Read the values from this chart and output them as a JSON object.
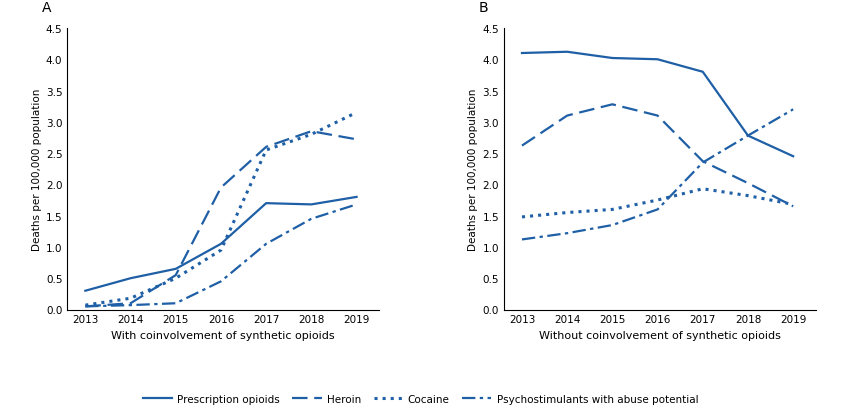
{
  "years": [
    2013,
    2014,
    2015,
    2016,
    2017,
    2018,
    2019
  ],
  "panel_A": {
    "title": "A",
    "xlabel": "With coinvolvement of synthetic opioids",
    "ylabel": "Deaths per 100,000 population",
    "prescription_opioids": [
      0.3,
      0.5,
      0.65,
      1.05,
      1.7,
      1.68,
      1.8
    ],
    "heroin": [
      0.05,
      0.1,
      0.55,
      1.95,
      2.6,
      2.85,
      2.72
    ],
    "cocaine": [
      0.07,
      0.18,
      0.5,
      0.95,
      2.55,
      2.8,
      3.15
    ],
    "psychostimulants": [
      0.05,
      0.07,
      0.1,
      0.45,
      1.05,
      1.45,
      1.68
    ]
  },
  "panel_B": {
    "title": "B",
    "xlabel": "Without coinvolvement of synthetic opioids",
    "ylabel": "Deaths per 100,000 population",
    "prescription_opioids": [
      4.1,
      4.12,
      4.02,
      4.0,
      3.8,
      2.78,
      2.45
    ],
    "heroin": [
      2.62,
      3.1,
      3.28,
      3.1,
      2.37,
      2.02,
      1.65
    ],
    "cocaine": [
      1.48,
      1.55,
      1.6,
      1.75,
      1.93,
      1.82,
      1.68
    ],
    "psychostimulants": [
      1.12,
      1.22,
      1.35,
      1.6,
      2.35,
      2.78,
      3.2
    ]
  },
  "color": "#1f5fa6",
  "ylim": [
    0,
    4.5
  ],
  "yticks": [
    0.0,
    0.5,
    1.0,
    1.5,
    2.0,
    2.5,
    3.0,
    3.5,
    4.0,
    4.5
  ],
  "legend_labels": [
    "Prescription opioids",
    "Heroin",
    "Cocaine",
    "Psychostimulants with abuse potential"
  ],
  "figsize": [
    8.41,
    4.14
  ],
  "dpi": 100
}
